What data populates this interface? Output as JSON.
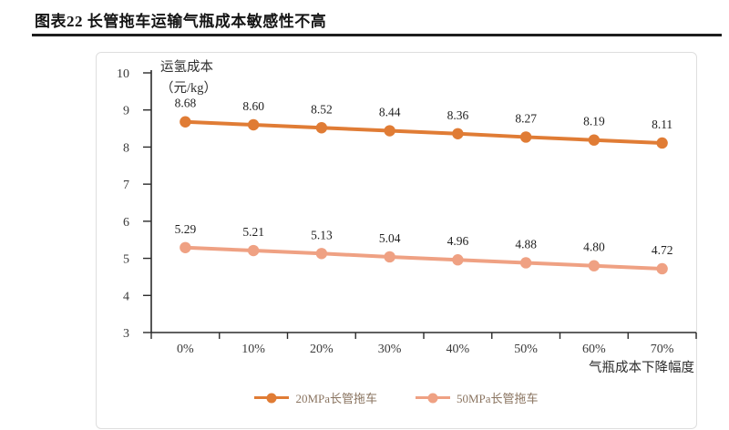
{
  "header": {
    "title": "图表22 长管拖车运输气瓶成本敏感性不高"
  },
  "chart_data": {
    "type": "line",
    "title": "图表22 长管拖车运输气瓶成本敏感性不高",
    "ylabel_line1": "运氢成本",
    "ylabel_line2": "（元/kg）",
    "xlabel": "气瓶成本下降幅度",
    "categories": [
      "0%",
      "10%",
      "20%",
      "30%",
      "40%",
      "50%",
      "60%",
      "70%"
    ],
    "y_ticks": [
      10,
      9,
      8,
      7,
      6,
      5,
      4,
      3
    ],
    "ylim": [
      3,
      10
    ],
    "grid": false,
    "legend_position": "bottom",
    "series": [
      {
        "name": "20MPa长管拖车",
        "color": "#E07C35",
        "values": [
          8.68,
          8.6,
          8.52,
          8.44,
          8.36,
          8.27,
          8.19,
          8.11
        ],
        "labels": [
          "8.68",
          "8.60",
          "8.52",
          "8.44",
          "8.36",
          "8.27",
          "8.19",
          "8.11"
        ]
      },
      {
        "name": "50MPa长管拖车",
        "color": "#EFA183",
        "values": [
          5.29,
          5.21,
          5.13,
          5.04,
          4.96,
          4.88,
          4.8,
          4.72
        ],
        "labels": [
          "5.29",
          "5.21",
          "5.13",
          "5.04",
          "4.96",
          "4.88",
          "4.80",
          "4.72"
        ]
      }
    ],
    "colors": {
      "axis": "#2b2b2b",
      "tick_label": "#3a3a3a",
      "data_label": "#1f1f1f",
      "title_rule": "#1d1d1d",
      "legend_text": "#8a7460",
      "panel_border": "#dedede"
    }
  }
}
